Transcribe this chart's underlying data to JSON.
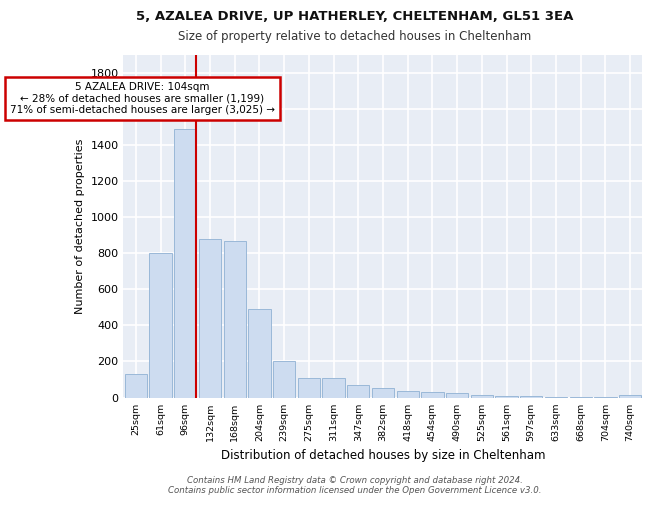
{
  "title1": "5, AZALEA DRIVE, UP HATHERLEY, CHELTENHAM, GL51 3EA",
  "title2": "Size of property relative to detached houses in Cheltenham",
  "xlabel": "Distribution of detached houses by size in Cheltenham",
  "ylabel": "Number of detached properties",
  "bar_color": "#cddcf0",
  "bar_edgecolor": "#9ab8d8",
  "bg_color": "#e8edf5",
  "grid_color": "#ffffff",
  "categories": [
    "25sqm",
    "61sqm",
    "96sqm",
    "132sqm",
    "168sqm",
    "204sqm",
    "239sqm",
    "275sqm",
    "311sqm",
    "347sqm",
    "382sqm",
    "418sqm",
    "454sqm",
    "490sqm",
    "525sqm",
    "561sqm",
    "597sqm",
    "633sqm",
    "668sqm",
    "704sqm",
    "740sqm"
  ],
  "values": [
    130,
    800,
    1490,
    880,
    870,
    490,
    205,
    110,
    110,
    70,
    50,
    35,
    30,
    25,
    15,
    10,
    8,
    5,
    5,
    5,
    15
  ],
  "red_line_x": 2,
  "annotation_text": "5 AZALEA DRIVE: 104sqm\n← 28% of detached houses are smaller (1,199)\n71% of semi-detached houses are larger (3,025) →",
  "annotation_box_color": "white",
  "annotation_box_edgecolor": "#cc0000",
  "vline_color": "#cc0000",
  "ylim": [
    0,
    1900
  ],
  "yticks": [
    0,
    200,
    400,
    600,
    800,
    1000,
    1200,
    1400,
    1600,
    1800
  ],
  "footer": "Contains HM Land Registry data © Crown copyright and database right 2024.\nContains public sector information licensed under the Open Government Licence v3.0."
}
